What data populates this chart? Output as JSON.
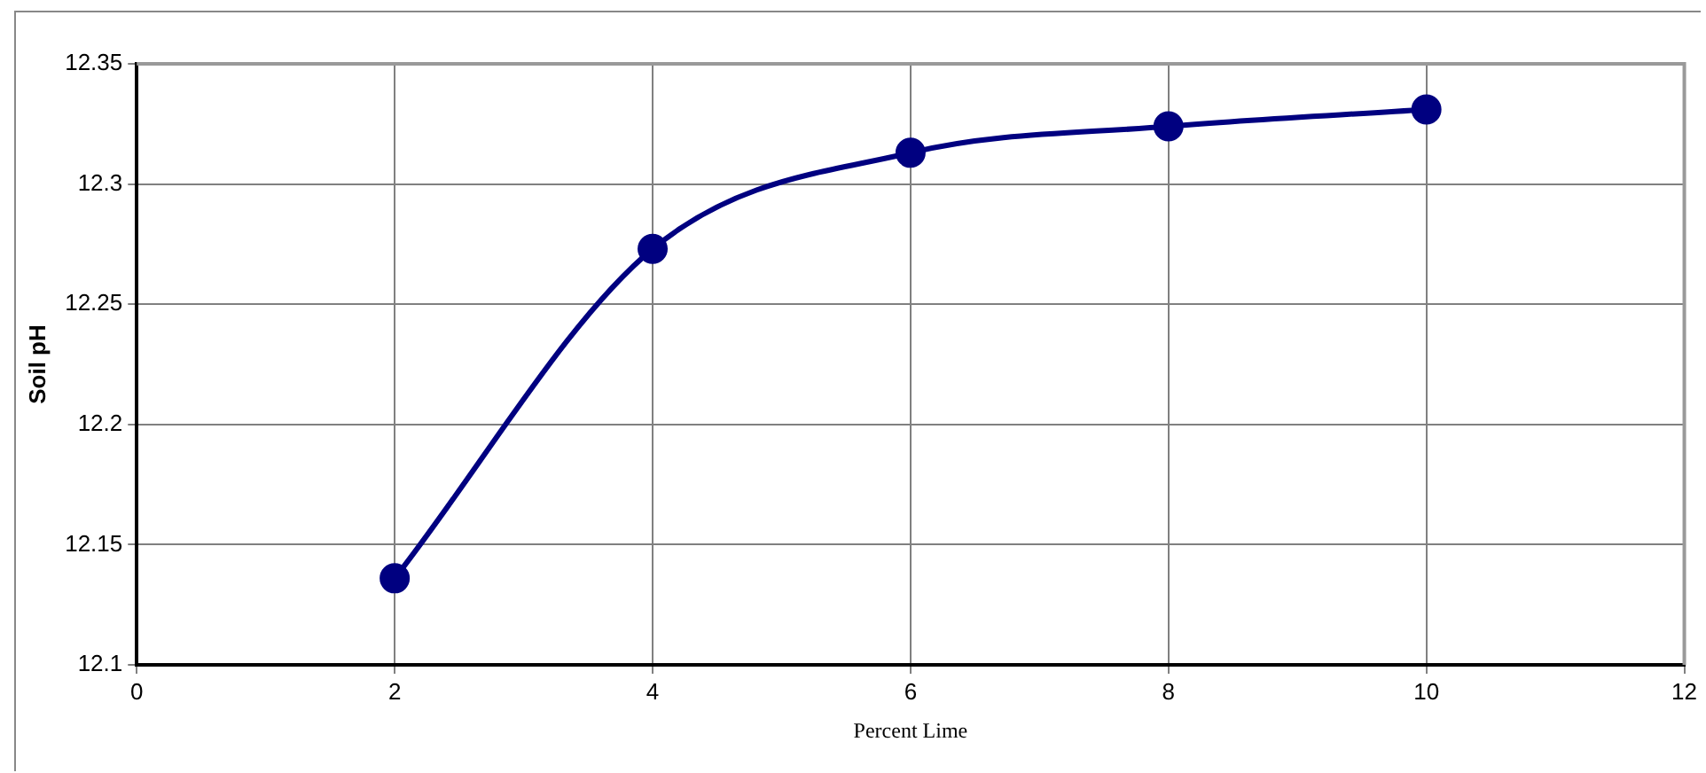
{
  "chart_data": {
    "type": "line",
    "xlabel": "Percent Lime",
    "ylabel": "Soil pH",
    "x": [
      2,
      4,
      6,
      8,
      10
    ],
    "series": [
      {
        "color": "#000080",
        "values": [
          12.136,
          12.273,
          12.313,
          12.324,
          12.331
        ]
      }
    ],
    "xlim": [
      0,
      12
    ],
    "xticks": [
      0,
      2,
      4,
      6,
      8,
      10,
      12
    ],
    "ylim": [
      12.1,
      12.35
    ],
    "yticks": [
      12.1,
      12.15,
      12.2,
      12.25,
      12.3,
      12.35
    ],
    "grid": true,
    "legend": false,
    "marker": "circle",
    "line_style": "solid"
  }
}
